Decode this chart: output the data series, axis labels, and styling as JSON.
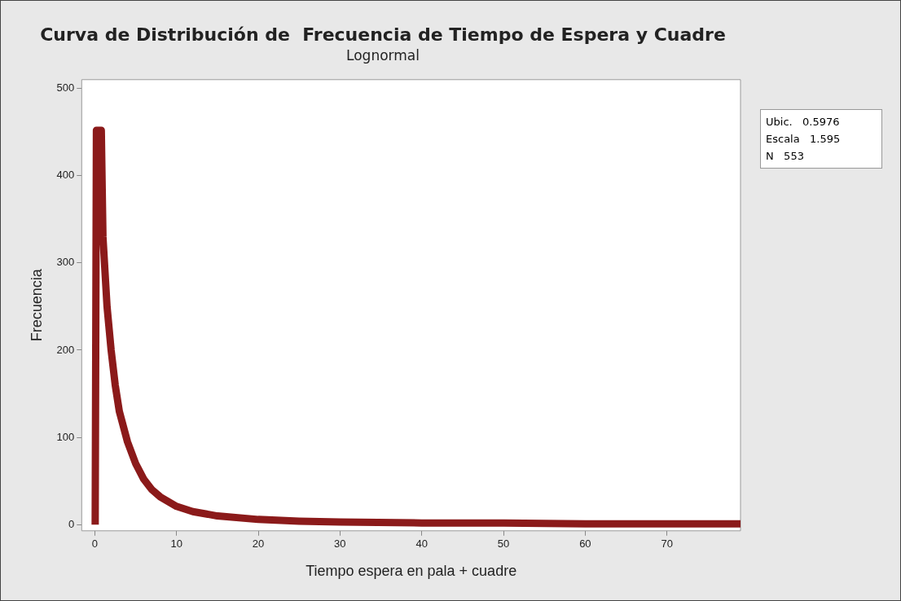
{
  "chart_data": {
    "type": "line",
    "title": "Curva de Distribución de  Frecuencia de Tiempo de Espera y Cuadre",
    "subtitle": "Lognormal",
    "xlabel": "Tiempo espera en pala + cuadre",
    "ylabel": "Frecuencia",
    "series": [
      {
        "color": "#8b1a1a",
        "x": [
          0.05,
          0.2,
          0.8,
          1,
          1.5,
          2,
          2.5,
          3,
          4,
          5,
          6,
          7,
          8,
          10,
          12,
          15,
          20,
          25,
          30,
          40,
          50,
          60,
          70,
          79
        ],
        "values": [
          0,
          452,
          452,
          330,
          250,
          200,
          160,
          130,
          95,
          70,
          52,
          40,
          32,
          21,
          15,
          10,
          6,
          4,
          3,
          2,
          2,
          1,
          1,
          1
        ]
      }
    ],
    "xlim": [
      -1.6,
      79
    ],
    "xticks": [
      0,
      10,
      20,
      30,
      40,
      50,
      60,
      70
    ],
    "ylim": [
      -7,
      510
    ],
    "yticks": [
      0,
      100,
      200,
      300,
      400,
      500
    ],
    "grid": false,
    "legend": false,
    "marker": "none",
    "line_style": "solid",
    "annotations": [
      "Ubic.   0.5976",
      "Escala   1.595",
      "N   553"
    ]
  }
}
